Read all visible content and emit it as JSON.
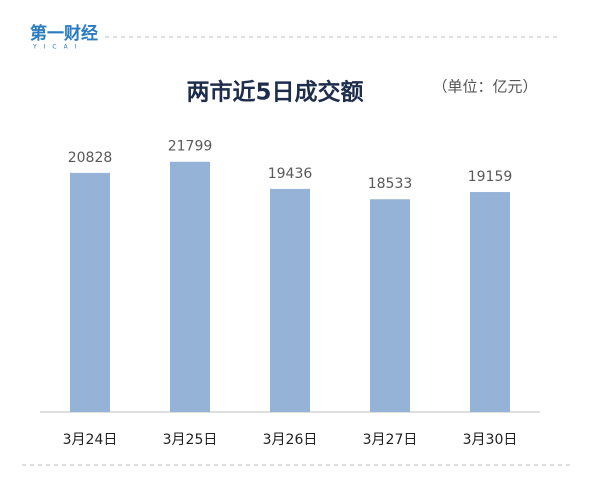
{
  "logo": {
    "name": "第一财经",
    "sub": "YICAI"
  },
  "chart_data": {
    "type": "bar",
    "title": "两市近5日成交额",
    "subtitle": "（单位：亿元）",
    "categories": [
      "3月24日",
      "3月25日",
      "3月26日",
      "3月27日",
      "3月30日"
    ],
    "values": [
      20828,
      21799,
      19436,
      18533,
      19159
    ],
    "color": "#95b3d7",
    "ylim": [
      0,
      25000
    ]
  }
}
